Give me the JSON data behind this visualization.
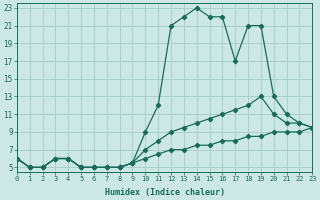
{
  "xlabel": "Humidex (Indice chaleur)",
  "background_color": "#cce8e4",
  "grid_color": "#aad0cb",
  "line_color": "#1a6b5a",
  "xlim": [
    0,
    23
  ],
  "ylim": [
    5,
    23
  ],
  "xticks": [
    0,
    1,
    2,
    3,
    4,
    5,
    6,
    7,
    8,
    9,
    10,
    11,
    12,
    13,
    14,
    15,
    16,
    17,
    18,
    19,
    20,
    21,
    22,
    23
  ],
  "yticks": [
    5,
    7,
    9,
    11,
    13,
    15,
    17,
    19,
    21,
    23
  ],
  "series": [
    {
      "x": [
        0,
        1,
        2,
        3,
        4,
        5,
        6,
        7,
        8,
        9,
        10,
        11,
        12,
        13,
        14,
        15,
        16,
        17,
        18,
        19,
        20,
        21,
        22,
        23
      ],
      "y": [
        6,
        5,
        5,
        6,
        6,
        5,
        5,
        5,
        5,
        5.5,
        9,
        12,
        21,
        22,
        23,
        22,
        22,
        17,
        21,
        21,
        13,
        11,
        10,
        9.5
      ]
    },
    {
      "x": [
        0,
        1,
        2,
        3,
        4,
        5,
        6,
        7,
        8,
        9,
        10,
        11,
        12,
        13,
        14,
        15,
        16,
        17,
        18,
        19,
        20,
        21,
        22,
        23
      ],
      "y": [
        6,
        5,
        5,
        6,
        6,
        5,
        5,
        5,
        5,
        5.5,
        7,
        8,
        9,
        9.5,
        10,
        10.5,
        11,
        11.5,
        12,
        13,
        11,
        10,
        10,
        9.5
      ]
    },
    {
      "x": [
        0,
        1,
        2,
        3,
        4,
        5,
        6,
        7,
        8,
        9,
        10,
        11,
        12,
        13,
        14,
        15,
        16,
        17,
        18,
        19,
        20,
        21,
        22,
        23
      ],
      "y": [
        6,
        5,
        5,
        6,
        6,
        5,
        5,
        5,
        5,
        5.5,
        6,
        6.5,
        7,
        7,
        7.5,
        7.5,
        8,
        8,
        8.5,
        8.5,
        9,
        9,
        9,
        9.5
      ]
    }
  ]
}
